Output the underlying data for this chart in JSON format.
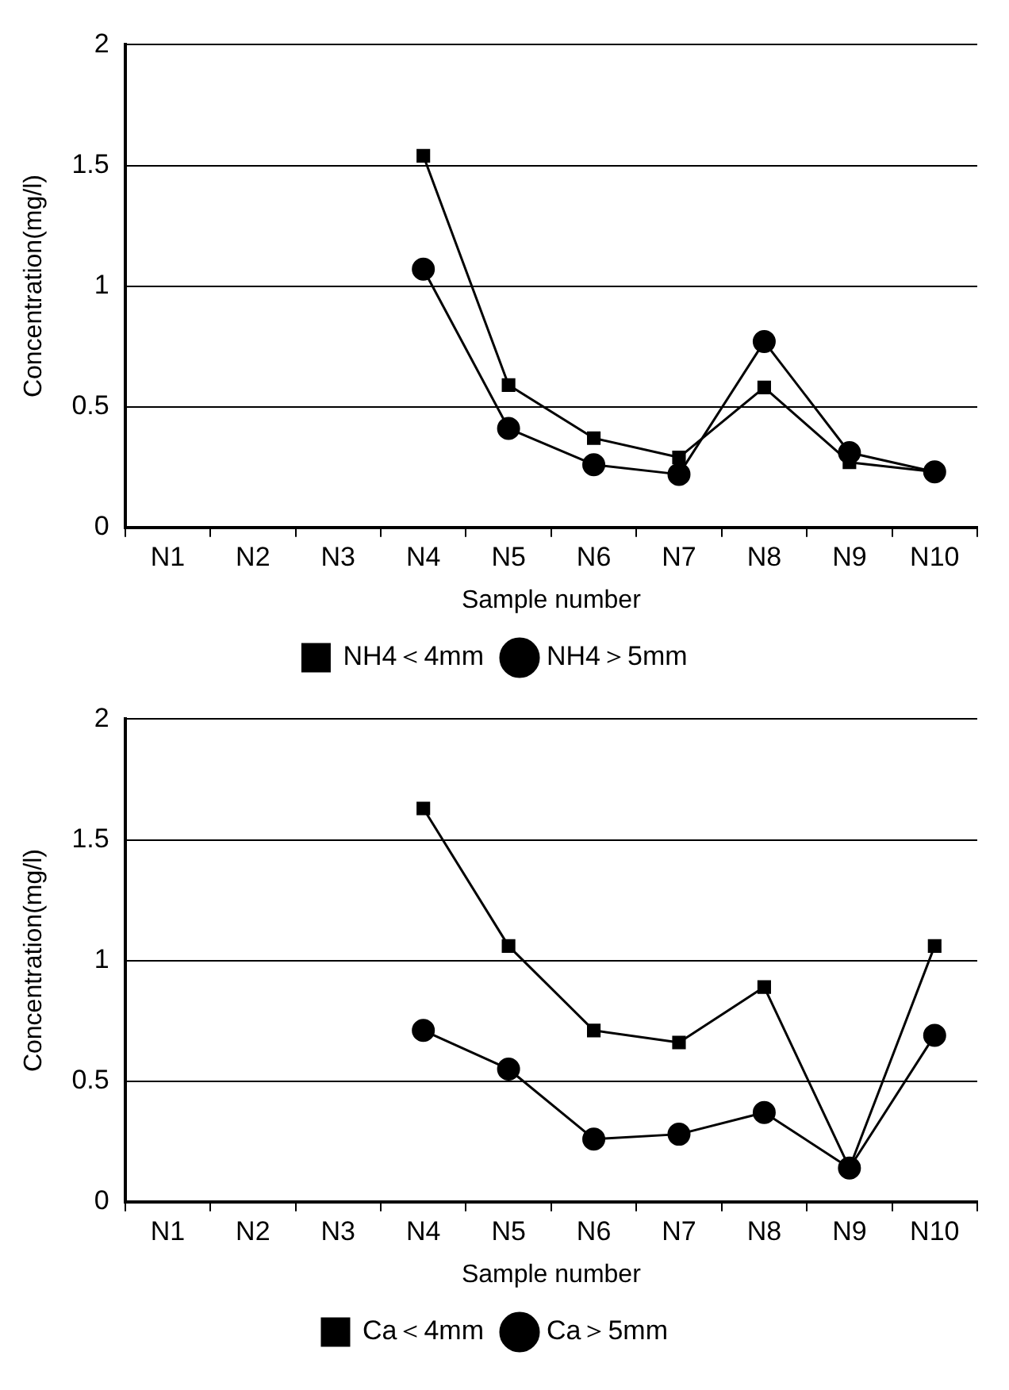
{
  "chart_data": [
    {
      "type": "line",
      "xlabel": "Sample number",
      "ylabel": "Concentration(mg/l)",
      "categories": [
        "N1",
        "N2",
        "N3",
        "N4",
        "N5",
        "N6",
        "N7",
        "N8",
        "N9",
        "N10"
      ],
      "ylim": [
        0,
        2
      ],
      "yticks": [
        0,
        0.5,
        1,
        1.5,
        2
      ],
      "grid": "y",
      "legend": "bottom",
      "series": [
        {
          "name": "NH4＜4mm",
          "color": "#000000",
          "marker": "square",
          "values": [
            null,
            null,
            null,
            1.54,
            0.59,
            0.37,
            0.29,
            0.58,
            0.27,
            0.23
          ]
        },
        {
          "name": "NH4＞5mm",
          "color": "#000000",
          "marker": "circle",
          "values": [
            null,
            null,
            null,
            1.07,
            0.41,
            0.26,
            0.22,
            0.77,
            0.31,
            0.23
          ]
        }
      ]
    },
    {
      "type": "line",
      "xlabel": "Sample number",
      "ylabel": "Concentration(mg/l)",
      "categories": [
        "N1",
        "N2",
        "N3",
        "N4",
        "N5",
        "N6",
        "N7",
        "N8",
        "N9",
        "N10"
      ],
      "ylim": [
        0,
        2
      ],
      "yticks": [
        0,
        0.5,
        1,
        1.5,
        2
      ],
      "grid": "y",
      "legend": "bottom",
      "series": [
        {
          "name": "Ca＜4mm",
          "color": "#000000",
          "marker": "square",
          "values": [
            null,
            null,
            null,
            1.63,
            1.06,
            0.71,
            0.66,
            0.89,
            0.14,
            1.06
          ]
        },
        {
          "name": "Ca＞5mm",
          "color": "#000000",
          "marker": "circle",
          "values": [
            null,
            null,
            null,
            0.71,
            0.55,
            0.26,
            0.28,
            0.37,
            0.14,
            0.69
          ]
        }
      ]
    }
  ]
}
